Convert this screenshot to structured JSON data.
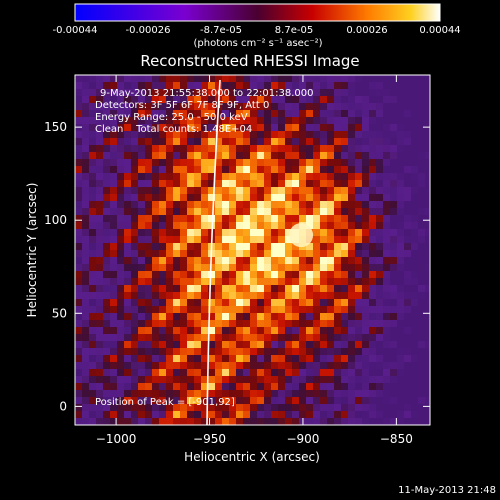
{
  "colorbar": {
    "ticks": [
      "-0.00044",
      "-0.00026",
      "-8.7e-05",
      "8.7e-05",
      "0.00026",
      "0.00044"
    ],
    "units": "(photons cm⁻² s⁻¹ asec⁻²)"
  },
  "chart_data": {
    "type": "heatmap",
    "title": "Reconstructed RHESSI Image",
    "xlabel": "Heliocentric X (arcsec)",
    "ylabel": "Heliocentric Y (arcsec)",
    "xlim": [
      -1022,
      -832
    ],
    "ylim": [
      -10,
      178
    ],
    "x_ticks": [
      -1000,
      -950,
      -900,
      -850
    ],
    "x_tick_labels": [
      "−1000",
      "−950",
      "−900",
      "−850"
    ],
    "y_ticks": [
      0,
      50,
      100,
      150
    ],
    "y_tick_labels": [
      "0",
      "50",
      "100",
      "150"
    ],
    "value_range": [
      -0.00044,
      0.00044
    ],
    "colormap": "RHESSI (blue-purple-red-orange-yellow-white)",
    "peak": [
      -901,
      92
    ],
    "limb_visible": true
  },
  "info": {
    "line1": "9-May-2013 21:55:38.000 to 22:01:38.000",
    "line2": "Detectors: 3F 5F 6F 7F 8F 9F, Att 0",
    "line3": "Energy Range: 25.0 - 50.0 keV",
    "line4": "Clean    Total counts: 1.48E+04",
    "peak_text": "Position of Peak = [-901,92]"
  },
  "footer": "11-May-2013 21:48",
  "colors": {
    "background": "#000000",
    "text": "#ffffff"
  }
}
